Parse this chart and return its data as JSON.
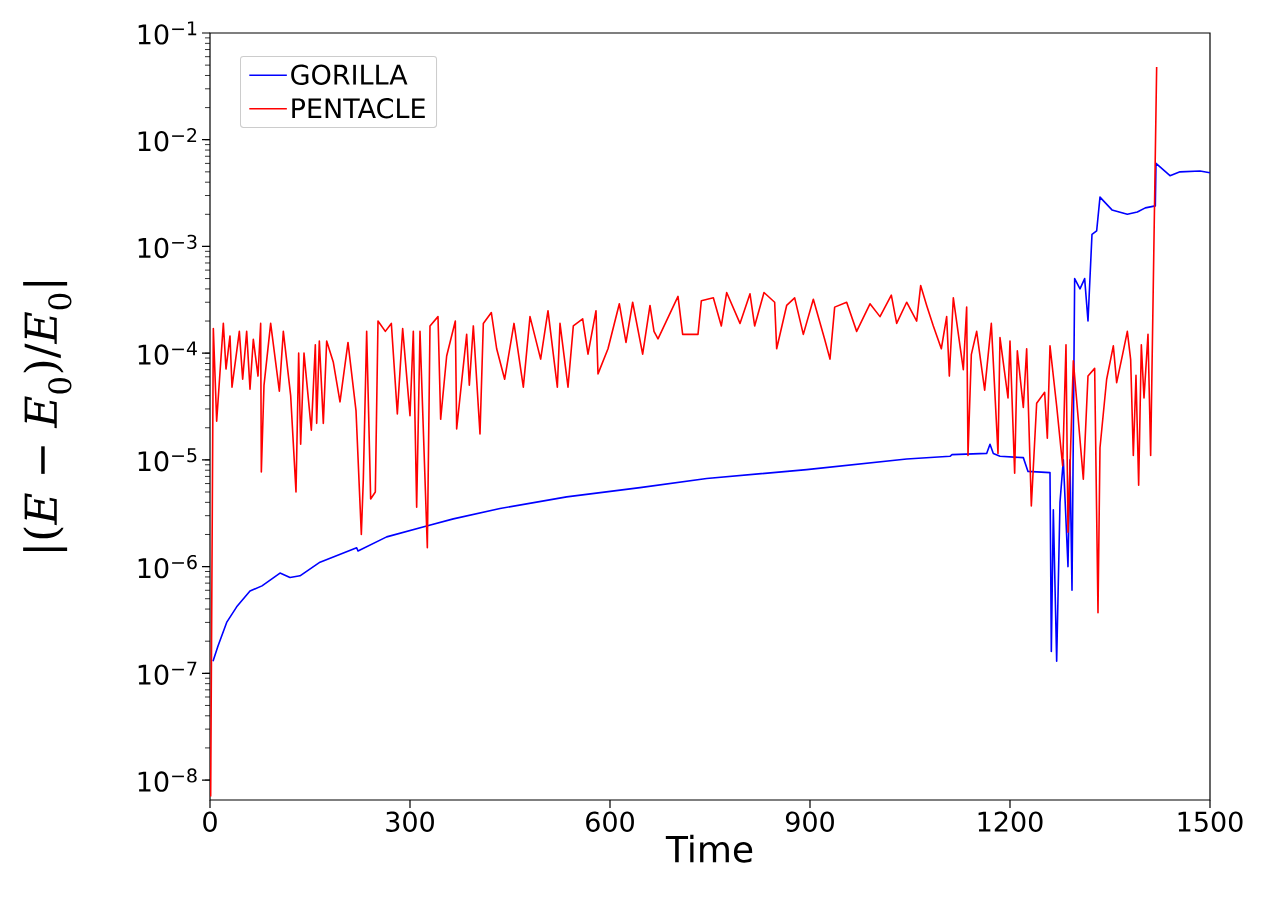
{
  "chart_data": {
    "type": "line",
    "xlabel": "Time",
    "ylabel": "|(*E* − *E*$_{0}$)/*E*$_{0}$|",
    "xlim": [
      0,
      1500
    ],
    "xticks": [
      0,
      300,
      600,
      900,
      1200,
      1500
    ],
    "ylim": [
      6.5e-09,
      0.1
    ],
    "yticks": [
      {
        "value": 1e-08,
        "label": "10$^{−8}$"
      },
      {
        "value": 1e-07,
        "label": "10$^{−7}$"
      },
      {
        "value": 1e-06,
        "label": "10$^{−6}$"
      },
      {
        "value": 1e-05,
        "label": "10$^{−5}$"
      },
      {
        "value": 0.0001,
        "label": "10$^{−4}$"
      },
      {
        "value": 0.001,
        "label": "10$^{−3}$"
      },
      {
        "value": 0.01,
        "label": "10$^{−2}$"
      },
      {
        "value": 0.1,
        "label": "10$^{−1}$"
      }
    ],
    "log": "y",
    "legend": "top left",
    "grid": false,
    "marker": "none",
    "line_style": "solid",
    "series": [
      {
        "name": "GORILLA",
        "color": "#0000ff",
        "x": [
          4.5,
          12,
          25,
          40,
          60,
          78,
          105,
          120,
          135,
          165,
          220,
          222,
          265,
          325,
          365,
          435,
          535,
          645,
          745,
          895,
          1045,
          1110,
          1113,
          1165,
          1170,
          1175,
          1185,
          1220,
          1227,
          1260,
          1262,
          1265,
          1270,
          1275,
          1280,
          1287,
          1290,
          1293,
          1297,
          1305,
          1312,
          1317,
          1323,
          1330,
          1335,
          1342,
          1353,
          1376,
          1391,
          1403,
          1418,
          1419,
          1440,
          1455,
          1485,
          1500
        ],
        "values": [
          1.3e-07,
          1.8e-07,
          3e-07,
          4.2e-07,
          5.9e-07,
          6.6e-07,
          8.7e-07,
          7.9e-07,
          8.2e-07,
          1.1e-06,
          1.5e-06,
          1.4e-06,
          1.9e-06,
          2.4e-06,
          2.8e-06,
          3.5e-06,
          4.5e-06,
          5.5e-06,
          6.7e-06,
          8.1e-06,
          1.02e-05,
          1.08e-05,
          1.12e-05,
          1.15e-05,
          1.4e-05,
          1.15e-05,
          1.08e-05,
          1.05e-05,
          7.8e-06,
          7.6e-06,
          1.6e-07,
          3.4e-06,
          1.3e-07,
          4e-06,
          1e-05,
          1e-06,
          1e-05,
          6e-07,
          0.0005,
          0.0004,
          0.0005,
          0.0002,
          0.0013,
          0.0014,
          0.0029,
          0.0026,
          0.0022,
          0.002,
          0.0021,
          0.0023,
          0.0024,
          0.006,
          0.0046,
          0.005,
          0.0051,
          0.0049
        ]
      },
      {
        "name": "PENTACLE",
        "color": "#ff0000",
        "x": [
          1,
          5,
          10,
          20,
          24,
          30,
          33,
          44,
          49,
          55,
          60,
          65,
          72,
          76,
          77,
          81,
          91,
          104,
          110,
          121,
          129,
          133,
          136,
          141,
          152,
          158,
          160,
          164,
          170,
          175,
          185,
          195,
          207,
          219,
          227,
          230,
          235,
          241,
          248,
          252,
          263,
          272,
          281,
          289,
          300,
          305,
          310,
          315,
          326,
          330,
          342,
          346,
          355,
          368,
          370,
          385,
          389,
          395,
          405,
          410,
          422,
          430,
          442,
          456,
          470,
          480,
          496,
          507,
          521,
          525,
          537,
          545,
          559,
          567,
          579,
          582,
          597,
          614,
          624,
          634,
          649,
          660,
          666,
          672,
          702,
          709,
          732,
          737,
          755,
          767,
          775,
          795,
          810,
          817,
          831,
          847,
          850,
          865,
          877,
          890,
          905,
          922,
          930,
          937,
          955,
          970,
          990,
          1005,
          1022,
          1030,
          1045,
          1060,
          1066,
          1075,
          1085,
          1097,
          1105,
          1109,
          1115,
          1125,
          1130,
          1135,
          1137,
          1142,
          1150,
          1162,
          1172,
          1182,
          1185,
          1197,
          1200,
          1207,
          1211,
          1220,
          1225,
          1232,
          1240,
          1252,
          1256,
          1260,
          1270,
          1279,
          1284,
          1287,
          1295,
          1310,
          1317,
          1327,
          1332,
          1335,
          1345,
          1355,
          1360,
          1369,
          1376,
          1381,
          1385,
          1389,
          1393,
          1397,
          1401,
          1407,
          1411,
          1420
        ],
        "values": [
          7e-09,
          0.00017,
          2.3e-05,
          0.00019,
          7.1e-05,
          0.000145,
          4.8e-05,
          0.00016,
          5.7e-05,
          0.00016,
          4.6e-05,
          0.000135,
          6.1e-05,
          0.00019,
          7.7e-06,
          5e-05,
          0.00019,
          4.4e-05,
          0.00016,
          4e-05,
          5e-06,
          0.0001,
          1.4e-05,
          0.0001,
          1.9e-05,
          0.00012,
          2.2e-05,
          0.00013,
          2.2e-05,
          0.00013,
          8.2e-05,
          3.5e-05,
          0.000126,
          2.9e-05,
          2e-06,
          6.6e-06,
          0.00016,
          4.3e-06,
          5e-06,
          0.0002,
          0.00016,
          0.00019,
          2.7e-05,
          0.00017,
          2.6e-05,
          0.00016,
          3.6e-06,
          0.00016,
          1.5e-06,
          0.00018,
          0.00022,
          2.4e-05,
          9.4e-05,
          0.0002,
          1.95e-05,
          0.00015,
          5e-05,
          0.00018,
          1.75e-05,
          0.00019,
          0.00024,
          0.00011,
          5.7e-05,
          0.00019,
          4.8e-05,
          0.00022,
          8.8e-05,
          0.00025,
          4.8e-05,
          0.00019,
          4.8e-05,
          0.00018,
          0.00021,
          9.8e-05,
          0.00025,
          6.4e-05,
          0.00011,
          0.00029,
          0.000126,
          0.0003,
          9.8e-05,
          0.00028,
          0.00016,
          0.000136,
          0.00034,
          0.00015,
          0.00015,
          0.00031,
          0.00033,
          0.00018,
          0.00037,
          0.00019,
          0.00036,
          0.00018,
          0.00037,
          0.0003,
          0.00011,
          0.00028,
          0.00033,
          0.00015,
          0.00032,
          0.000135,
          8.8e-05,
          0.00027,
          0.0003,
          0.00016,
          0.00029,
          0.00022,
          0.00035,
          0.00019,
          0.0003,
          0.0002,
          0.00043,
          0.00028,
          0.00018,
          0.00011,
          0.00022,
          6.1e-05,
          0.00033,
          0.000117,
          7e-05,
          0.00027,
          1.1e-05,
          9.7e-05,
          0.00016,
          4.5e-05,
          0.00019,
          1.15e-05,
          0.00014,
          3.8e-05,
          0.00013,
          7.5e-06,
          0.000105,
          3.1e-05,
          0.00011,
          3.7e-06,
          3.4e-05,
          4.3e-05,
          1.6e-05,
          0.000117,
          3.2e-05,
          8.8e-06,
          0.00012,
          2.1e-06,
          8.5e-05,
          6.6e-06,
          6.1e-05,
          7.2e-05,
          3.7e-07,
          1.3e-05,
          5.7e-05,
          0.000117,
          5.3e-05,
          9.8e-05,
          0.00016,
          8.7e-05,
          1.1e-05,
          6.2e-05,
          5.8e-06,
          0.00012,
          3.8e-05,
          0.00015,
          1.1e-05,
          0.048
        ]
      }
    ]
  }
}
